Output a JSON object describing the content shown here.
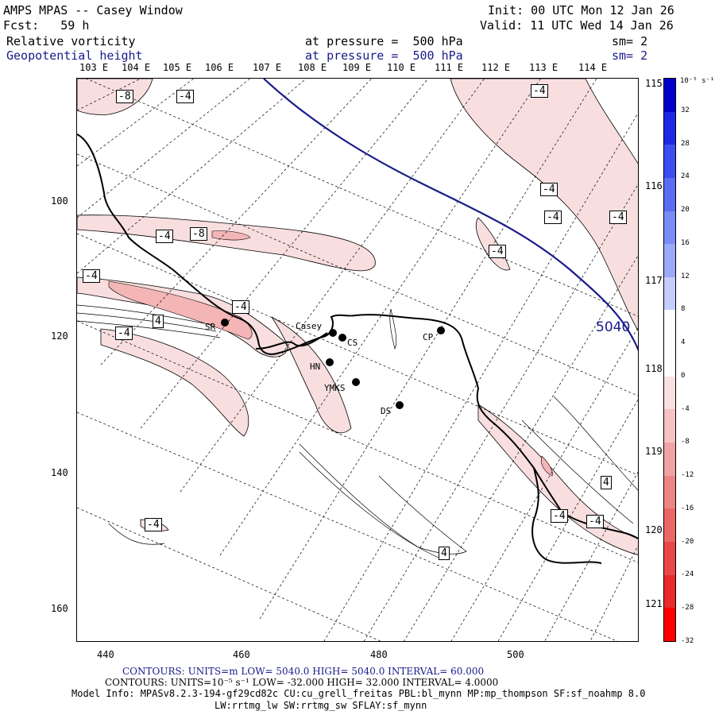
{
  "header": {
    "title": "AMPS MPAS -- Casey Window",
    "fcst": "Fcst:   59 h",
    "init": "Init: 00 UTC Mon 12 Jan 26",
    "valid": "Valid: 11 UTC Wed 14 Jan 26",
    "field1": "Relative vorticity",
    "field1_level": "at pressure =  500 hPa",
    "field1_sm": "sm= 2",
    "field2": "Geopotential height",
    "field2_level": "at pressure =  500 hPa",
    "field2_sm": "sm= 2"
  },
  "lon_labels": [
    "103 E",
    "104 E",
    "105 E",
    "106 E",
    "107 E",
    "108 E",
    "109 E",
    "110 E",
    "111 E",
    "112 E",
    "113 E",
    "114 E"
  ],
  "lat_side_labels": [
    "115 E",
    "116 E",
    "117 E",
    "118 E",
    "119 E",
    "120 E",
    "121 E"
  ],
  "y_ticks": [
    "100",
    "120",
    "140",
    "160"
  ],
  "x_ticks": [
    "440",
    "460",
    "480",
    "500"
  ],
  "contour_labels": [
    "-8",
    "-4",
    "-4",
    "-4",
    "-4",
    "-4",
    "-8",
    "-4",
    "-4",
    "-4",
    "-4",
    "4",
    "-4",
    "4",
    "-4",
    "-4",
    "-4",
    "4"
  ],
  "height_label": "5040",
  "stations": [
    "SR",
    "Casey",
    "CS",
    "CP",
    "HN",
    "YMKS",
    "DS"
  ],
  "colorbar": {
    "unit": "10⁻⁵ s⁻¹",
    "ticks": [
      "32",
      "28",
      "24",
      "20",
      "16",
      "12",
      "8",
      "4",
      "0",
      "-4",
      "-8",
      "-12",
      "-16",
      "-20",
      "-24",
      "-28",
      "-32"
    ],
    "colors": [
      "#0000cc",
      "#1c28e6",
      "#3d4ef0",
      "#5a6ef4",
      "#7a8cf6",
      "#9aaaf8",
      "#c5cdfb",
      "#ffffff",
      "#ffffff",
      "#fbe0e0",
      "#f6c2c2",
      "#f1a3a3",
      "#ee8585",
      "#ec6666",
      "#ea4848",
      "#e82a2a",
      "#ff0000"
    ]
  },
  "footer": {
    "line1": "CONTOURS:  UNITS=m  LOW=  5040.0         HIGH=  5040.0        INTERVAL=   60.000",
    "line2": "CONTOURS:  UNITS=10⁻⁵ s⁻¹   LOW=  -32.000         HIGH=  32.000        INTERVAL=   4.0000",
    "line3": "Model Info: MPASv8.2.3-194-gf29cd82c CU:cu_grell_freitas PBL:bl_mynn MP:mp_thompson SF:sf_noahmp 8.0",
    "line4": "LW:rrtmg_lw SW:rrtmg_sw SFLAY:sf_mynn"
  }
}
